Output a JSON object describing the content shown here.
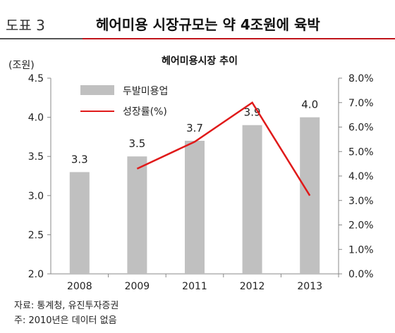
{
  "figure": {
    "label": "도표 3",
    "title": "헤어미용 시장규모는 약 4조원에 육박"
  },
  "chart_data": {
    "type": "bar",
    "title": "헤어미용시장 추이",
    "y_unit": "(조원)",
    "categories": [
      "2008",
      "2009",
      "2011",
      "2012",
      "2013"
    ],
    "ylim": [
      2.0,
      4.5
    ],
    "yticks": [
      "2.0",
      "2.5",
      "3.0",
      "3.5",
      "4.0",
      "4.5"
    ],
    "y2lim": [
      0,
      8
    ],
    "y2ticks": [
      "0.0%",
      "1.0%",
      "2.0%",
      "3.0%",
      "4.0%",
      "5.0%",
      "6.0%",
      "7.0%",
      "8.0%"
    ],
    "series": [
      {
        "name": "두발미용업",
        "type": "bar",
        "axis": "left",
        "color": "#c0c0c0",
        "values": [
          3.3,
          3.5,
          3.7,
          3.9,
          4.0
        ],
        "labels": [
          "3.3",
          "3.5",
          "3.7",
          "3.9",
          "4.0"
        ]
      },
      {
        "name": "성장률(%)",
        "type": "line",
        "axis": "right",
        "color": "#e01a1a",
        "values": [
          null,
          4.3,
          5.4,
          7.0,
          3.2
        ]
      }
    ],
    "legend_position": "top-left",
    "grid": false
  },
  "footer": {
    "source": "자료: 통계청, 유진투자증권",
    "note": "주: 2010년은 데이터 없음"
  }
}
